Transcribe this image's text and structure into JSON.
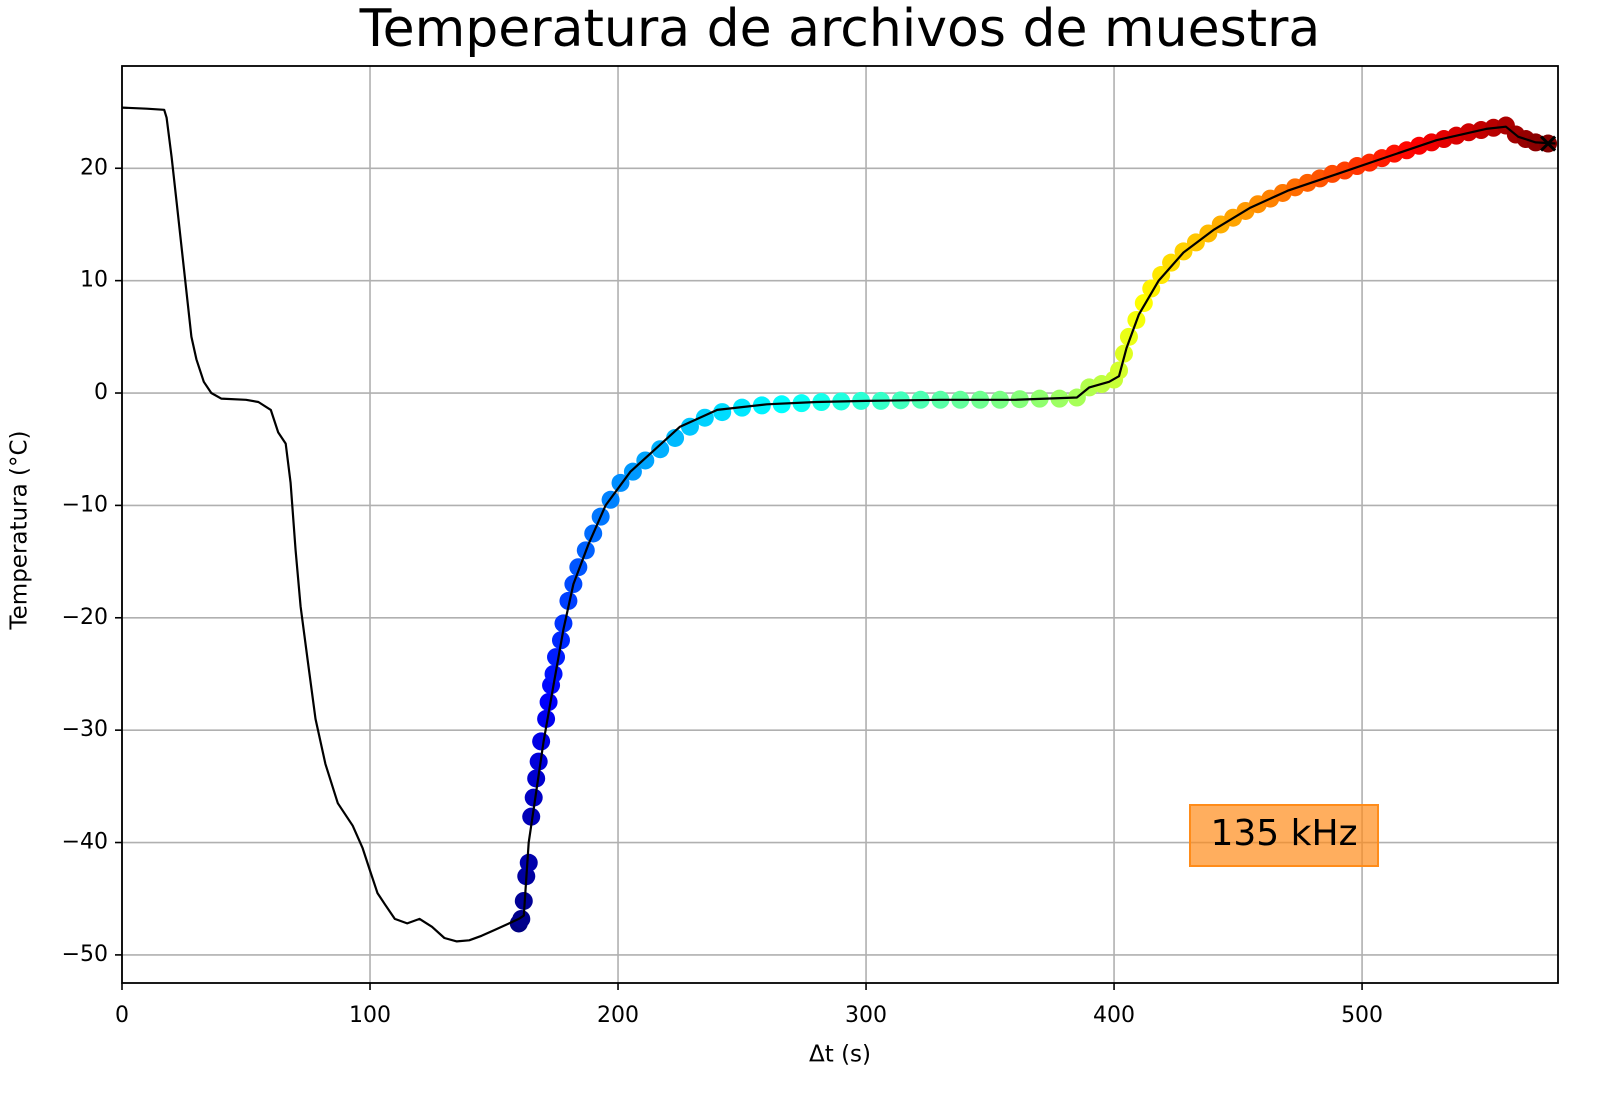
{
  "chart_data": {
    "type": "line",
    "title": "Temperatura de archivos de muestra",
    "xlabel": "Δt (s)",
    "ylabel": "Temperatura (°C)",
    "xlim": [
      0,
      579
    ],
    "ylim": [
      -52.5,
      29.1
    ],
    "xticks": [
      0,
      100,
      200,
      300,
      400,
      500
    ],
    "yticks": [
      {
        "value": -50,
        "label": "−50"
      },
      {
        "value": -40,
        "label": "−40"
      },
      {
        "value": -30,
        "label": "−30"
      },
      {
        "value": -20,
        "label": "−20"
      },
      {
        "value": -10,
        "label": "−10"
      },
      0,
      10,
      20
    ],
    "grid": true,
    "series": [
      {
        "type": "scatter",
        "colormap": "jet",
        "x": [
          160,
          161,
          162,
          163,
          164,
          165,
          166,
          167,
          168,
          169,
          171,
          172,
          173,
          174,
          175,
          177,
          178,
          180,
          182,
          184,
          187,
          190,
          193,
          197,
          201,
          206,
          211,
          217,
          223,
          229,
          235,
          242,
          250,
          258,
          266,
          274,
          282,
          290,
          298,
          306,
          314,
          322,
          330,
          338,
          346,
          354,
          362,
          370,
          378,
          385,
          390,
          395,
          400,
          402,
          404,
          406,
          409,
          412,
          415,
          419,
          423,
          428,
          433,
          438,
          443,
          448,
          453,
          458,
          463,
          468,
          473,
          478,
          483,
          488,
          493,
          498,
          503,
          508,
          513,
          518,
          523,
          528,
          533,
          538,
          543,
          548,
          553,
          558,
          562,
          566,
          570,
          575
        ],
        "values": [
          -47.2,
          -46.8,
          -45.2,
          -43,
          -41.8,
          -37.7,
          -36,
          -34.3,
          -32.8,
          -31,
          -29,
          -27.5,
          -26,
          -25,
          -23.5,
          -22,
          -20.5,
          -18.5,
          -17,
          -15.5,
          -14,
          -12.5,
          -11,
          -9.5,
          -8,
          -7,
          -6,
          -5,
          -4,
          -3,
          -2.2,
          -1.7,
          -1.3,
          -1.1,
          -1,
          -0.9,
          -0.8,
          -0.75,
          -0.7,
          -0.7,
          -0.65,
          -0.6,
          -0.6,
          -0.6,
          -0.6,
          -0.6,
          -0.55,
          -0.5,
          -0.5,
          -0.4,
          0.5,
          0.8,
          1.2,
          2,
          3.5,
          5,
          6.5,
          8,
          9.3,
          10.5,
          11.6,
          12.6,
          13.4,
          14.2,
          15,
          15.6,
          16.2,
          16.8,
          17.3,
          17.8,
          18.3,
          18.7,
          19.1,
          19.5,
          19.8,
          20.2,
          20.5,
          20.9,
          21.3,
          21.6,
          22,
          22.3,
          22.6,
          22.9,
          23.2,
          23.4,
          23.6,
          23.8,
          23,
          22.6,
          22.3,
          22.2
        ]
      },
      {
        "type": "line",
        "color": "#000000",
        "x": [
          0,
          10,
          17,
          18,
          20,
          22,
          25,
          28,
          30,
          33,
          36,
          40,
          50,
          55,
          60,
          63,
          66,
          68,
          70,
          72,
          75,
          78,
          82,
          87,
          93,
          97,
          100,
          103,
          106,
          110,
          115,
          120,
          125,
          130,
          135,
          140,
          145,
          150,
          155,
          160,
          162,
          164,
          166,
          170,
          174,
          178,
          182,
          188,
          195,
          205,
          215,
          225,
          240,
          260,
          280,
          300,
          330,
          360,
          385,
          390,
          398,
          402,
          405,
          410,
          418,
          428,
          440,
          455,
          470,
          490,
          510,
          530,
          550,
          558,
          563,
          570,
          578
        ],
        "values": [
          25.4,
          25.3,
          25.2,
          24.5,
          21,
          17,
          11,
          5,
          3,
          1,
          0,
          -0.5,
          -0.6,
          -0.8,
          -1.5,
          -3.5,
          -4.5,
          -8,
          -14,
          -19,
          -24,
          -29,
          -33,
          -36.5,
          -38.5,
          -40.5,
          -42.5,
          -44.5,
          -45.5,
          -46.8,
          -47.2,
          -46.8,
          -47.5,
          -48.5,
          -48.8,
          -48.7,
          -48.3,
          -47.8,
          -47.3,
          -46.8,
          -46.5,
          -40,
          -37,
          -31,
          -26,
          -21,
          -17,
          -13.5,
          -10,
          -7,
          -5,
          -3,
          -1.5,
          -1,
          -0.8,
          -0.7,
          -0.6,
          -0.6,
          -0.4,
          0.5,
          1,
          1.5,
          4,
          7,
          10,
          12.5,
          14.5,
          16.5,
          18,
          19.5,
          21,
          22.5,
          23.5,
          23.7,
          22.8,
          22.3,
          22.2
        ]
      }
    ],
    "end_marker": {
      "x": 575,
      "y": 22.2,
      "color": "#000000"
    },
    "annotation": {
      "text": "135 kHz",
      "color": "#ff8c1a"
    }
  }
}
